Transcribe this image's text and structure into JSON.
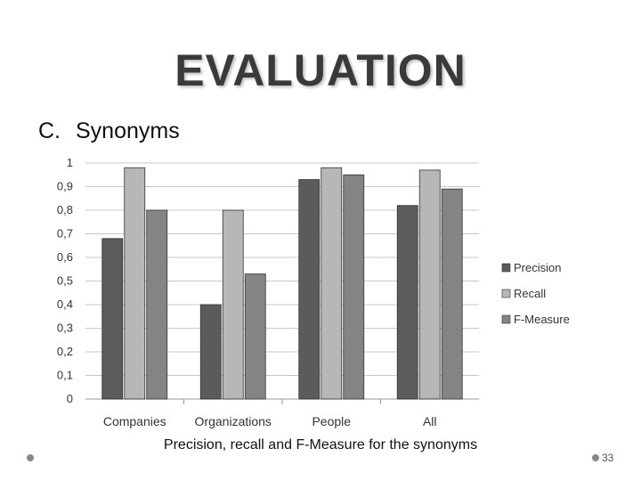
{
  "slide": {
    "title": "EVALUATION",
    "section_letter": "C.",
    "section_title": "Synonyms",
    "caption": "Precision, recall and F-Measure for the synonyms",
    "page_number": "33"
  },
  "chart_data": {
    "type": "bar",
    "categories": [
      "Companies",
      "Organizations",
      "People",
      "All"
    ],
    "series": [
      {
        "name": "Precision",
        "values": [
          0.68,
          0.4,
          0.93,
          0.82
        ],
        "color": "#5b5b5b"
      },
      {
        "name": "Recall",
        "values": [
          0.98,
          0.8,
          0.98,
          0.97
        ],
        "color": "#b7b7b7"
      },
      {
        "name": "F-Measure",
        "values": [
          0.8,
          0.53,
          0.95,
          0.89
        ],
        "color": "#848484"
      }
    ],
    "yticks": [
      "0",
      "0,1",
      "0,2",
      "0,3",
      "0,4",
      "0,5",
      "0,6",
      "0,7",
      "0,8",
      "0,9",
      "1"
    ],
    "ylim": [
      0,
      1
    ],
    "grid": true,
    "legend_position": "right"
  }
}
